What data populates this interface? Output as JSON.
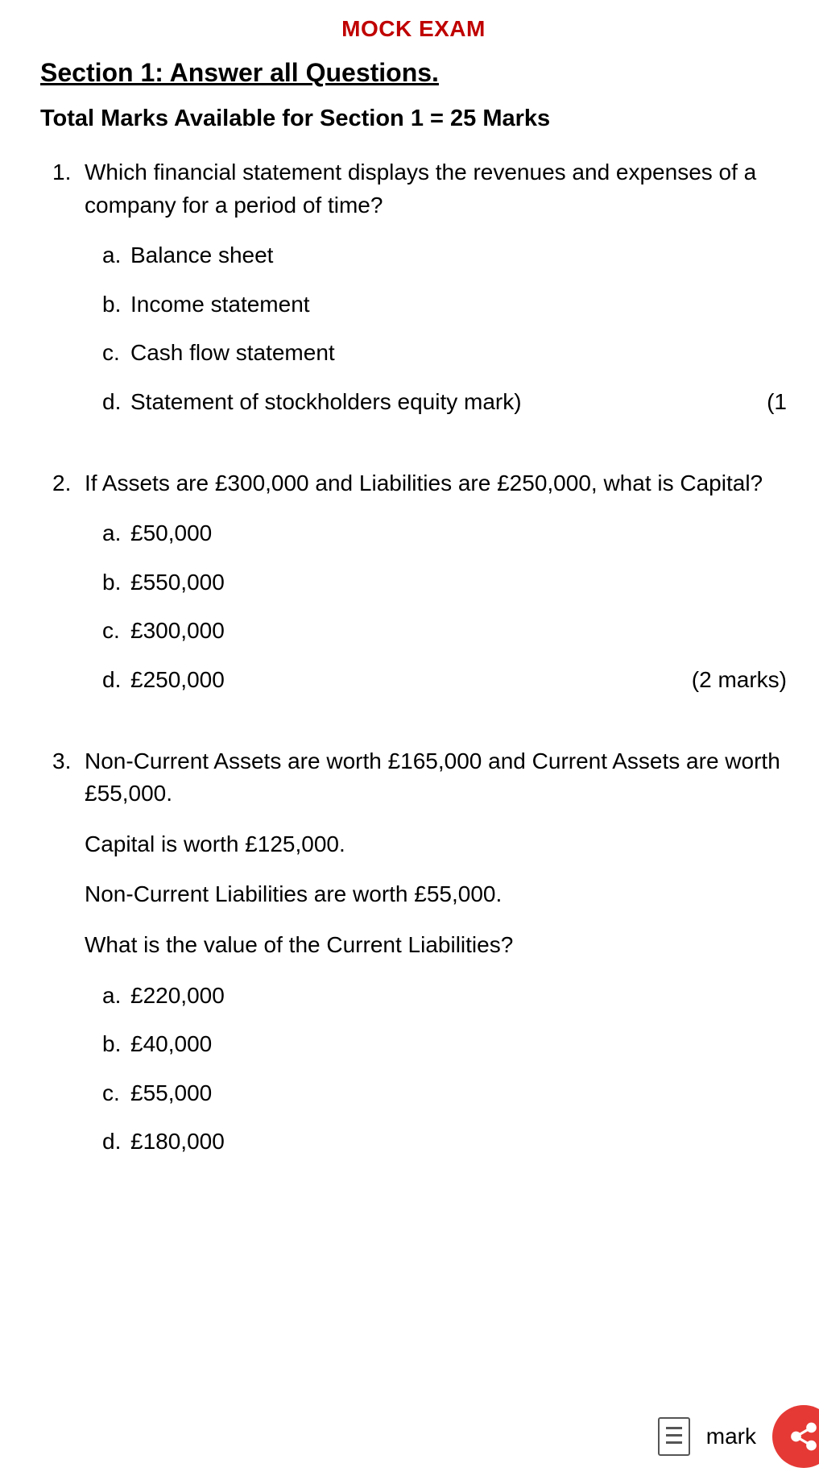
{
  "header": {
    "exam_title": "MOCK EXAM",
    "section_title": "Section 1: Answer all Questions.",
    "total_marks": "Total Marks Available for Section 1 = 25 Marks"
  },
  "questions": [
    {
      "number": "1.",
      "stem": "Which financial statement displays the revenues and expenses of a company for a period of time?",
      "extra_lines": [],
      "options": [
        {
          "letter": "a.",
          "text": "Balance sheet",
          "marks": ""
        },
        {
          "letter": "b.",
          "text": "Income statement",
          "marks": ""
        },
        {
          "letter": "c.",
          "text": "Cash flow statement",
          "marks": ""
        },
        {
          "letter": "d.",
          "text": "Statement of stockholders equity mark)",
          "marks": "(1"
        }
      ]
    },
    {
      "number": "2.",
      "stem": "If Assets are £300,000 and Liabilities are £250,000, what is Capital?",
      "extra_lines": [],
      "options": [
        {
          "letter": "a.",
          "text": "£50,000",
          "marks": ""
        },
        {
          "letter": "b.",
          "text": "£550,000",
          "marks": ""
        },
        {
          "letter": "c.",
          "text": "£300,000",
          "marks": ""
        },
        {
          "letter": "d.",
          "text": "£250,000",
          "marks": "(2 marks)"
        }
      ]
    },
    {
      "number": "3.",
      "stem": "Non-Current Assets are worth £165,000 and Current Assets are worth £55,000.",
      "extra_lines": [
        "Capital is worth £125,000.",
        "Non-Current Liabilities are worth £55,000.",
        "What is the value of the Current Liabilities?"
      ],
      "options": [
        {
          "letter": "a.",
          "text": "£220,000",
          "marks": ""
        },
        {
          "letter": "b.",
          "text": "£40,000",
          "marks": ""
        },
        {
          "letter": "c.",
          "text": "£55,000",
          "marks": ""
        },
        {
          "letter": "d.",
          "text": "£180,000",
          "marks": ""
        }
      ]
    }
  ],
  "floating": {
    "fragment": "mark",
    "colors": {
      "fab_bg": "#e53935",
      "title_color": "#c00000"
    }
  }
}
